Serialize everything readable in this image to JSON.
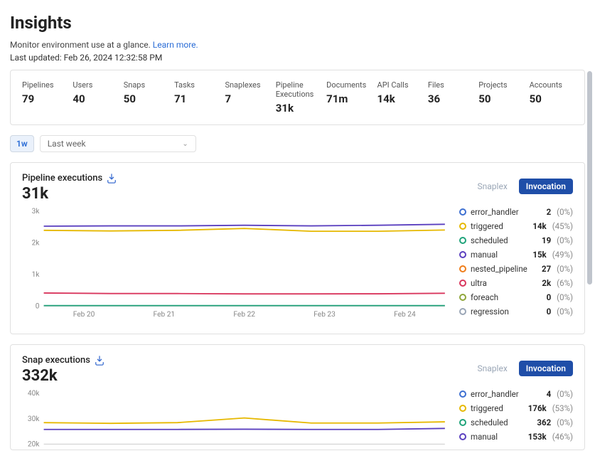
{
  "page": {
    "title": "Insights",
    "subtitle_prefix": "Monitor environment use at a glance. ",
    "learn_more": "Learn more.",
    "last_updated": "Last updated: Feb 26, 2024 12:32:58 PM"
  },
  "stats": [
    {
      "label": "Pipelines",
      "value": "79"
    },
    {
      "label": "Users",
      "value": "40"
    },
    {
      "label": "Snaps",
      "value": "50"
    },
    {
      "label": "Tasks",
      "value": "71"
    },
    {
      "label": "Snaplexes",
      "value": "7"
    },
    {
      "label": "Pipeline Executions",
      "value": "31k"
    },
    {
      "label": "Documents",
      "value": "71m"
    },
    {
      "label": "API Calls",
      "value": "14k"
    },
    {
      "label": "Files",
      "value": "36"
    },
    {
      "label": "Projects",
      "value": "50"
    },
    {
      "label": "Accounts",
      "value": "50"
    }
  ],
  "range": {
    "chip": "1w",
    "select": "Last week"
  },
  "chart1": {
    "title": "Pipeline executions",
    "big": "31k",
    "tabs": {
      "inactive": "Snaplex",
      "active": "Invocation"
    },
    "ylim": [
      0,
      3000
    ],
    "yticks": [
      {
        "v": 0,
        "l": "0"
      },
      {
        "v": 1000,
        "l": "1k"
      },
      {
        "v": 2000,
        "l": "2k"
      },
      {
        "v": 3000,
        "l": "3k"
      }
    ],
    "xticks": [
      "Feb 20",
      "Feb 21",
      "Feb 22",
      "Feb 23",
      "Feb 24"
    ],
    "series": [
      {
        "color": "#5a3fbf",
        "name": "manual",
        "pts": [
          2530,
          2540,
          2540,
          2560,
          2540,
          2560,
          2590
        ]
      },
      {
        "color": "#e6b800",
        "name": "triggered",
        "pts": [
          2400,
          2380,
          2400,
          2460,
          2370,
          2370,
          2410
        ]
      },
      {
        "color": "#d9365d",
        "name": "ultra",
        "pts": [
          420,
          400,
          400,
          390,
          390,
          395,
          410
        ]
      },
      {
        "color": "#1fa37a",
        "name": "scheduled",
        "pts": [
          20,
          20,
          20,
          20,
          20,
          20,
          20
        ]
      }
    ],
    "legend": [
      {
        "color": "#3d6fd1",
        "label": "error_handler",
        "val": "2",
        "pct": "(0%)"
      },
      {
        "color": "#e6b800",
        "label": "triggered",
        "val": "14k",
        "pct": "(45%)"
      },
      {
        "color": "#1fa37a",
        "label": "scheduled",
        "val": "19",
        "pct": "(0%)"
      },
      {
        "color": "#5a3fbf",
        "label": "manual",
        "val": "15k",
        "pct": "(49%)"
      },
      {
        "color": "#ef7d1a",
        "label": "nested_pipeline",
        "val": "27",
        "pct": "(0%)"
      },
      {
        "color": "#d9365d",
        "label": "ultra",
        "val": "2k",
        "pct": "(6%)"
      },
      {
        "color": "#8fa63a",
        "label": "foreach",
        "val": "0",
        "pct": "(0%)"
      },
      {
        "color": "#9aa6b6",
        "label": "regression",
        "val": "0",
        "pct": "(0%)"
      }
    ]
  },
  "chart2": {
    "title": "Snap executions",
    "big": "332k",
    "tabs": {
      "inactive": "Snaplex",
      "active": "Invocation"
    },
    "ylim": [
      20000,
      40000
    ],
    "yticks": [
      {
        "v": 20000,
        "l": "20k"
      },
      {
        "v": 30000,
        "l": "30k"
      },
      {
        "v": 40000,
        "l": "40k"
      }
    ],
    "series": [
      {
        "color": "#e6b800",
        "name": "triggered",
        "pts": [
          28500,
          28200,
          28500,
          30300,
          28300,
          28300,
          28800
        ]
      },
      {
        "color": "#5a3fbf",
        "name": "manual",
        "pts": [
          25800,
          25800,
          25800,
          25900,
          25800,
          25800,
          26200
        ]
      }
    ],
    "legend": [
      {
        "color": "#3d6fd1",
        "label": "error_handler",
        "val": "4",
        "pct": "(0%)"
      },
      {
        "color": "#e6b800",
        "label": "triggered",
        "val": "176k",
        "pct": "(53%)"
      },
      {
        "color": "#1fa37a",
        "label": "scheduled",
        "val": "362",
        "pct": "(0%)"
      },
      {
        "color": "#5a3fbf",
        "label": "manual",
        "val": "153k",
        "pct": "(46%)"
      }
    ]
  }
}
